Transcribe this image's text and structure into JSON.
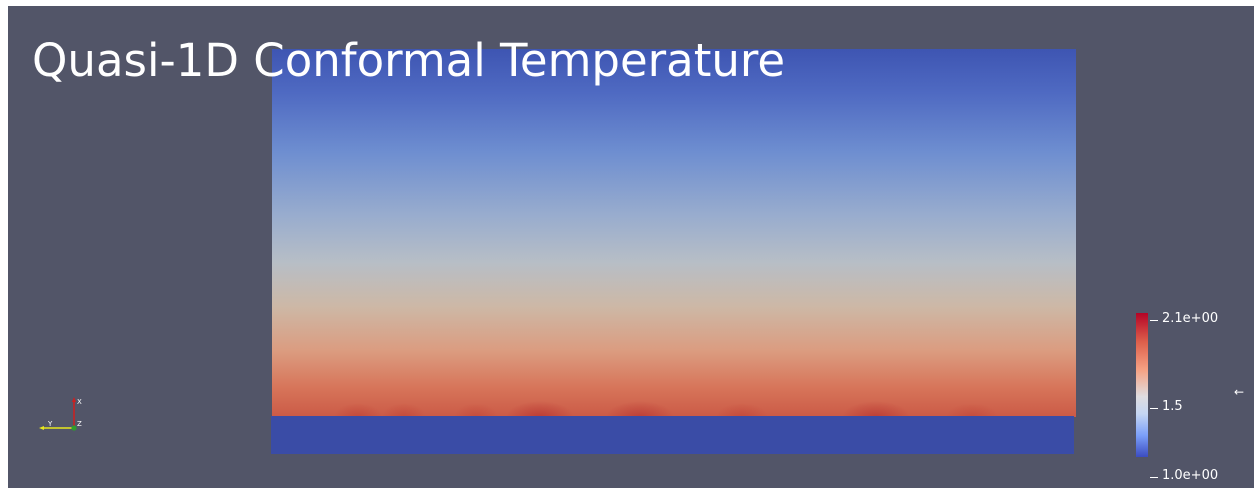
{
  "view": {
    "title": "Quasi-1D Conformal Temperature"
  },
  "axes": {
    "x_label": "X",
    "y_label": "Y",
    "z_label": "Z"
  },
  "colorbar": {
    "max_label": "2.1e+00",
    "mid_label": "1.5",
    "min_label": "1.0e+00",
    "colormap": [
      "#b40426",
      "#dddcdc",
      "#3b4cc0"
    ]
  },
  "colors": {
    "background": "#525568",
    "slab": "#3a4ca6"
  },
  "icons": {
    "edge": "arrow-left-icon"
  }
}
